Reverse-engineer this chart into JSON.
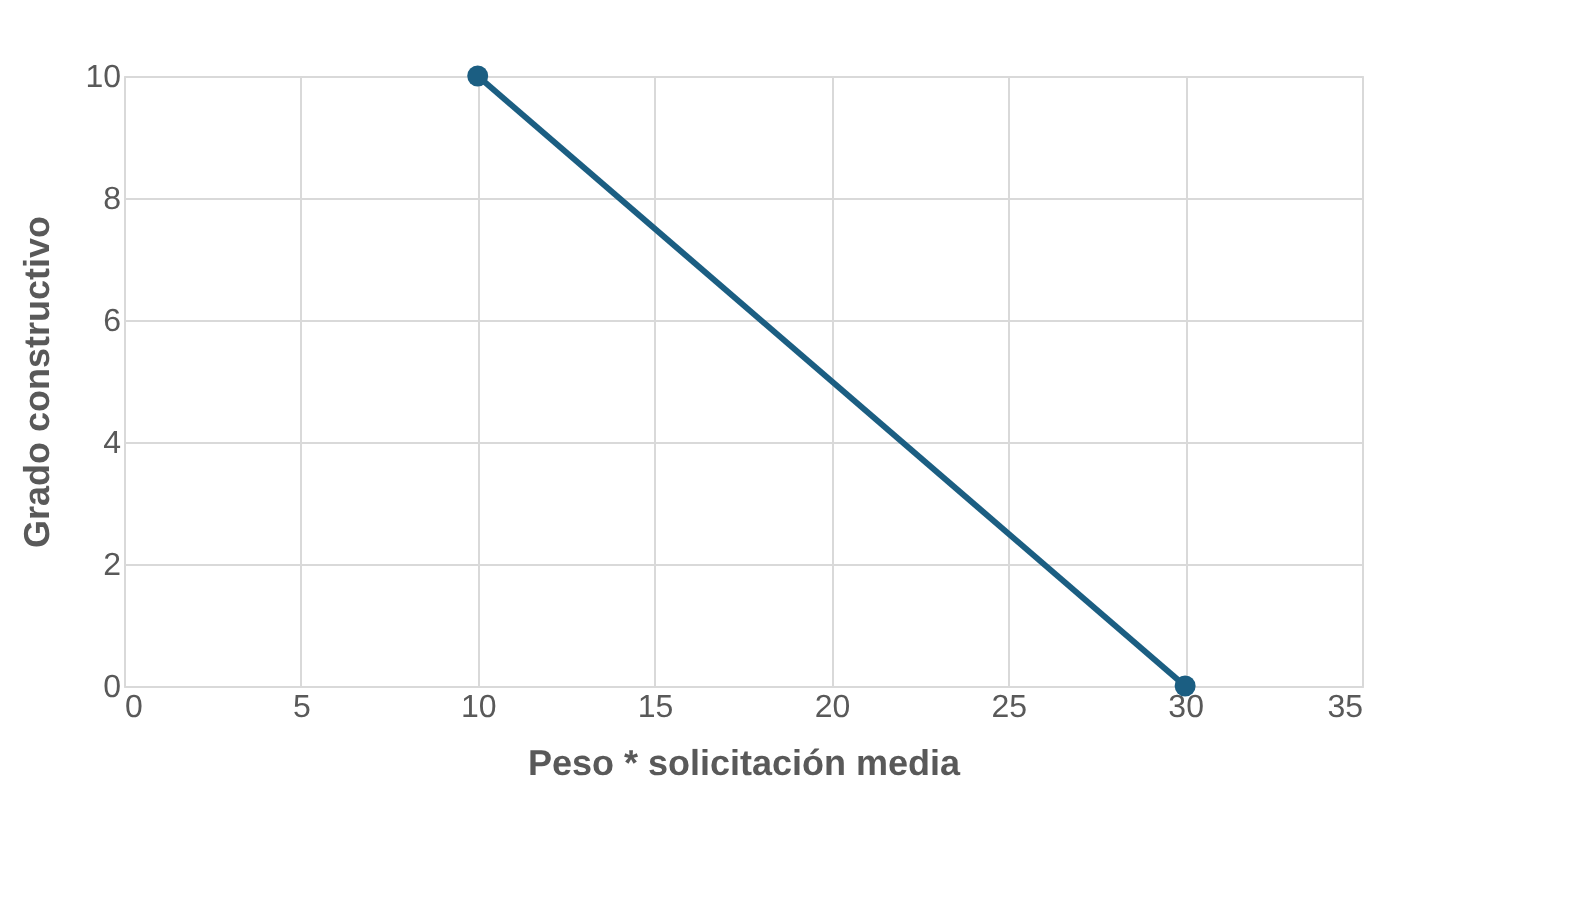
{
  "chart_data": {
    "type": "line",
    "xlabel": "Peso * solicitación media",
    "ylabel": "Grado constructivo",
    "x": [
      10,
      30
    ],
    "series": [
      {
        "color": "#1b5e82",
        "values": [
          10,
          0
        ]
      }
    ],
    "xlim": [
      0,
      35
    ],
    "xticks": [
      0,
      5,
      10,
      15,
      20,
      25,
      30,
      35
    ],
    "ylim": [
      0,
      10
    ],
    "yticks": [
      0,
      2,
      4,
      6,
      8,
      10
    ],
    "grid": true,
    "marker": "circle",
    "line_style": "solid"
  }
}
